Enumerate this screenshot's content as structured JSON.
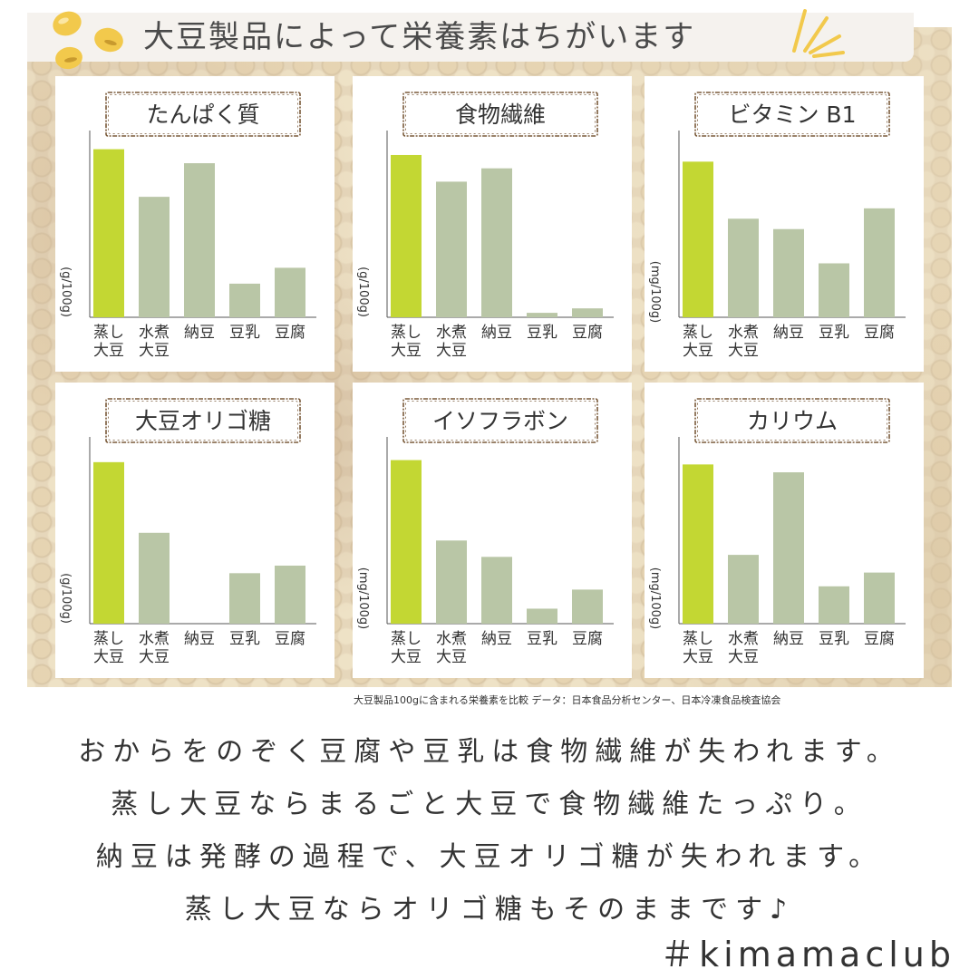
{
  "header": {
    "title": "大豆製品によって栄養素はちがいます"
  },
  "chart_data": [
    {
      "type": "bar",
      "title": "たんぱく質",
      "ylabel": "(g/100g)",
      "categories": [
        [
          "蒸し",
          "大豆"
        ],
        [
          "水煮",
          "大豆"
        ],
        [
          "納豆",
          ""
        ],
        [
          "豆乳",
          ""
        ],
        [
          "豆腐",
          ""
        ]
      ],
      "values": [
        18,
        12.9,
        16.5,
        3.6,
        5.3
      ],
      "ylim": [
        0,
        20
      ],
      "colors": [
        "#c3d733",
        "#b9c6a6",
        "#b9c6a6",
        "#b9c6a6",
        "#b9c6a6"
      ]
    },
    {
      "type": "bar",
      "title": "食物繊維",
      "ylabel": "(g/100g)",
      "categories": [
        [
          "蒸し",
          "大豆"
        ],
        [
          "水煮",
          "大豆"
        ],
        [
          "納豆",
          ""
        ],
        [
          "豆乳",
          ""
        ],
        [
          "豆腐",
          ""
        ]
      ],
      "values": [
        7.3,
        6.1,
        6.7,
        0.2,
        0.4
      ],
      "ylim": [
        0,
        8.4
      ],
      "colors": [
        "#c3d733",
        "#b9c6a6",
        "#b9c6a6",
        "#b9c6a6",
        "#b9c6a6"
      ]
    },
    {
      "type": "bar",
      "title": "ビタミン B1",
      "ylabel": "(mg/100g)",
      "categories": [
        [
          "蒸し",
          "大豆"
        ],
        [
          "水煮",
          "大豆"
        ],
        [
          "納豆",
          ""
        ],
        [
          "豆乳",
          ""
        ],
        [
          "豆腐",
          ""
        ]
      ],
      "values": [
        0.15,
        0.095,
        0.085,
        0.052,
        0.105
      ],
      "ylim": [
        0,
        0.18
      ],
      "colors": [
        "#c3d733",
        "#b9c6a6",
        "#b9c6a6",
        "#b9c6a6",
        "#b9c6a6"
      ]
    },
    {
      "type": "bar",
      "title": "大豆オリゴ糖",
      "ylabel": "(g/100g)",
      "categories": [
        [
          "蒸し",
          "大豆"
        ],
        [
          "水煮",
          "大豆"
        ],
        [
          "納豆",
          ""
        ],
        [
          "豆乳",
          ""
        ],
        [
          "豆腐",
          ""
        ]
      ],
      "values": [
        3.2,
        1.8,
        0,
        1.0,
        1.15
      ],
      "ylim": [
        0,
        3.7
      ],
      "colors": [
        "#c3d733",
        "#b9c6a6",
        "#b9c6a6",
        "#b9c6a6",
        "#b9c6a6"
      ]
    },
    {
      "type": "bar",
      "title": "イソフラボン",
      "ylabel": "(mg/100g)",
      "categories": [
        [
          "蒸し",
          "大豆"
        ],
        [
          "水煮",
          "大豆"
        ],
        [
          "納豆",
          ""
        ],
        [
          "豆乳",
          ""
        ],
        [
          "豆腐",
          ""
        ]
      ],
      "values": [
        120,
        61,
        49,
        11,
        25
      ],
      "ylim": [
        0,
        137
      ],
      "colors": [
        "#c3d733",
        "#b9c6a6",
        "#b9c6a6",
        "#b9c6a6",
        "#b9c6a6"
      ]
    },
    {
      "type": "bar",
      "title": "カリウム",
      "ylabel": "(mg/100g)",
      "categories": [
        [
          "蒸し",
          "大豆"
        ],
        [
          "水煮",
          "大豆"
        ],
        [
          "納豆",
          ""
        ],
        [
          "豆乳",
          ""
        ],
        [
          "豆腐",
          ""
        ]
      ],
      "values": [
        810,
        350,
        770,
        190,
        260
      ],
      "ylim": [
        0,
        950
      ],
      "colors": [
        "#c3d733",
        "#b9c6a6",
        "#b9c6a6",
        "#b9c6a6",
        "#b9c6a6"
      ]
    }
  ],
  "caption": "大豆製品100gに含まれる栄養素を比較 データ：日本食品分析センター、日本冷凍食品検査協会",
  "body": {
    "lines": [
      "おからをのぞく豆腐や豆乳は食物繊維が失われます。",
      "蒸し大豆ならまるごと大豆で食物繊維たっぷり。",
      "納豆は発酵の過程で、大豆オリゴ糖が失われます。",
      "蒸し大豆ならオリゴ糖もそのままです♪"
    ]
  },
  "hashtag": "＃kimamaclub",
  "decor": {
    "bean_color": "#f2c94c",
    "sparkle_color": "#f2c94c",
    "accent_green": "#c3d733",
    "bar_gray_green": "#b9c6a6"
  }
}
